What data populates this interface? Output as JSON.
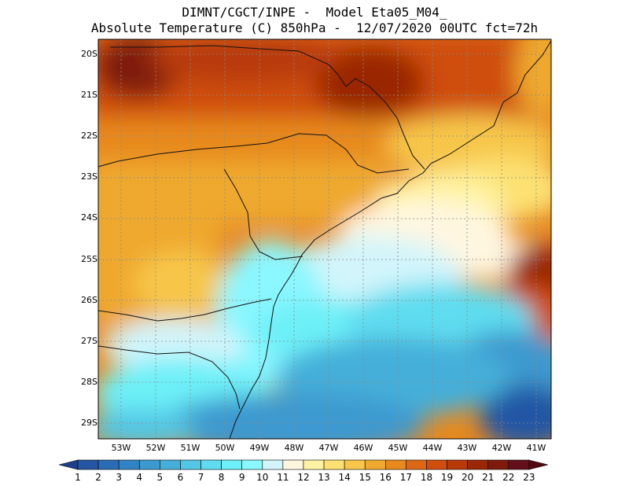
{
  "title": {
    "line1": "DIMNT/CGCT/INPE -  Model Eta05_M04_",
    "line2": "Absolute Temperature (C) 850hPa -  12/07/2020 00UTC fct=72h"
  },
  "axes": {
    "latitudes": [
      "20S",
      "21S",
      "22S",
      "23S",
      "24S",
      "25S",
      "26S",
      "27S",
      "28S",
      "29S"
    ],
    "longitudes": [
      "53W",
      "52W",
      "51W",
      "50W",
      "49W",
      "48W",
      "47W",
      "46W",
      "45W",
      "44W",
      "43W",
      "42W",
      "41W"
    ]
  },
  "colorbar": {
    "labels": [
      "1",
      "2",
      "3",
      "4",
      "5",
      "6",
      "7",
      "8",
      "9",
      "10",
      "11",
      "12",
      "13",
      "14",
      "15",
      "16",
      "17",
      "18",
      "19",
      "20",
      "21",
      "22",
      "23"
    ],
    "colors": [
      "#1f3e8c",
      "#2456a4",
      "#2a6cb6",
      "#3283c4",
      "#3c99cf",
      "#45afd9",
      "#52c6e4",
      "#5fdcef",
      "#6df0f8",
      "#8bf7ff",
      "#d2f5fb",
      "#fff6e0",
      "#fff3a3",
      "#fce172",
      "#f7c64a",
      "#efa92e",
      "#e7891f",
      "#dd6814",
      "#cf4d0d",
      "#b83a08",
      "#9a2806",
      "#7e1b0c",
      "#64101c",
      "#520a12"
    ]
  }
}
